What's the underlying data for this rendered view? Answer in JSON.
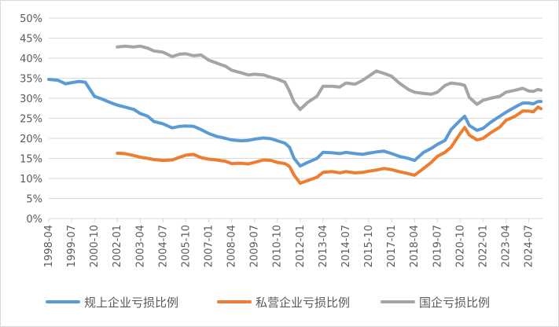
{
  "chart_data": {
    "type": "line",
    "title": "",
    "xlabel": "",
    "ylabel": "",
    "ylim": [
      0,
      0.5
    ],
    "y_ticks": [
      0,
      0.05,
      0.1,
      0.15,
      0.2,
      0.25,
      0.3,
      0.35,
      0.4,
      0.45,
      0.5
    ],
    "y_tick_labels": [
      "0%",
      "5%",
      "10%",
      "15%",
      "20%",
      "25%",
      "30%",
      "35%",
      "40%",
      "45%",
      "50%"
    ],
    "x_tick_labels": [
      "1998-04",
      "1999-07",
      "2000-10",
      "2002-01",
      "2003-04",
      "2004-07",
      "2005-10",
      "2007-01",
      "2008-04",
      "2009-07",
      "2010-10",
      "2012-01",
      "2013-04",
      "2014-07",
      "2015-10",
      "2017-01",
      "2018-04",
      "2019-07",
      "2020-10",
      "2022-01",
      "2023-04",
      "2024-07"
    ],
    "grid": "horizontal",
    "legend_position": "bottom",
    "series": [
      {
        "name": "规上企业亏损比例",
        "color": "#5b9bd5",
        "points": [
          [
            "1998-04",
            0.347
          ],
          [
            "1998-10",
            0.345
          ],
          [
            "1999-03",
            0.336
          ],
          [
            "1999-07",
            0.339
          ],
          [
            "1999-12",
            0.342
          ],
          [
            "2000-04",
            0.34
          ],
          [
            "2000-10",
            0.305
          ],
          [
            "2001-03",
            0.298
          ],
          [
            "2001-08",
            0.29
          ],
          [
            "2002-01",
            0.283
          ],
          [
            "2002-06",
            0.278
          ],
          [
            "2002-12",
            0.272
          ],
          [
            "2003-04",
            0.262
          ],
          [
            "2003-09",
            0.255
          ],
          [
            "2004-01",
            0.242
          ],
          [
            "2004-07",
            0.236
          ],
          [
            "2005-01",
            0.226
          ],
          [
            "2005-06",
            0.23
          ],
          [
            "2005-10",
            0.231
          ],
          [
            "2006-03",
            0.23
          ],
          [
            "2006-08",
            0.222
          ],
          [
            "2007-01",
            0.212
          ],
          [
            "2007-06",
            0.205
          ],
          [
            "2007-12",
            0.2
          ],
          [
            "2008-04",
            0.196
          ],
          [
            "2008-10",
            0.194
          ],
          [
            "2009-03",
            0.195
          ],
          [
            "2009-07",
            0.198
          ],
          [
            "2010-01",
            0.201
          ],
          [
            "2010-06",
            0.199
          ],
          [
            "2010-10",
            0.194
          ],
          [
            "2011-03",
            0.188
          ],
          [
            "2011-06",
            0.178
          ],
          [
            "2011-09",
            0.15
          ],
          [
            "2012-01",
            0.131
          ],
          [
            "2012-06",
            0.14
          ],
          [
            "2012-12",
            0.15
          ],
          [
            "2013-04",
            0.165
          ],
          [
            "2013-10",
            0.164
          ],
          [
            "2014-03",
            0.162
          ],
          [
            "2014-07",
            0.165
          ],
          [
            "2015-01",
            0.162
          ],
          [
            "2015-06",
            0.16
          ],
          [
            "2015-10",
            0.163
          ],
          [
            "2016-03",
            0.166
          ],
          [
            "2016-08",
            0.168
          ],
          [
            "2017-01",
            0.162
          ],
          [
            "2017-06",
            0.155
          ],
          [
            "2017-12",
            0.15
          ],
          [
            "2018-04",
            0.145
          ],
          [
            "2018-10",
            0.165
          ],
          [
            "2019-03",
            0.175
          ],
          [
            "2019-07",
            0.185
          ],
          [
            "2019-12",
            0.195
          ],
          [
            "2020-04",
            0.222
          ],
          [
            "2020-10",
            0.245
          ],
          [
            "2021-01",
            0.255
          ],
          [
            "2021-04",
            0.232
          ],
          [
            "2021-09",
            0.22
          ],
          [
            "2022-01",
            0.225
          ],
          [
            "2022-06",
            0.24
          ],
          [
            "2022-12",
            0.255
          ],
          [
            "2023-04",
            0.265
          ],
          [
            "2023-10",
            0.278
          ],
          [
            "2024-03",
            0.288
          ],
          [
            "2024-07",
            0.288
          ],
          [
            "2024-10",
            0.286
          ],
          [
            "2025-01",
            0.292
          ],
          [
            "2025-03",
            0.292
          ]
        ]
      },
      {
        "name": "私营企业亏损比例",
        "color": "#ed7d31",
        "points": [
          [
            "2002-01",
            0.163
          ],
          [
            "2002-06",
            0.162
          ],
          [
            "2002-12",
            0.157
          ],
          [
            "2003-04",
            0.153
          ],
          [
            "2003-09",
            0.15
          ],
          [
            "2004-01",
            0.147
          ],
          [
            "2004-07",
            0.145
          ],
          [
            "2005-01",
            0.146
          ],
          [
            "2005-06",
            0.153
          ],
          [
            "2005-10",
            0.158
          ],
          [
            "2006-03",
            0.16
          ],
          [
            "2006-08",
            0.152
          ],
          [
            "2007-01",
            0.148
          ],
          [
            "2007-06",
            0.146
          ],
          [
            "2007-12",
            0.143
          ],
          [
            "2008-04",
            0.137
          ],
          [
            "2008-10",
            0.138
          ],
          [
            "2009-03",
            0.136
          ],
          [
            "2009-07",
            0.14
          ],
          [
            "2010-01",
            0.146
          ],
          [
            "2010-06",
            0.145
          ],
          [
            "2010-10",
            0.14
          ],
          [
            "2011-03",
            0.137
          ],
          [
            "2011-06",
            0.13
          ],
          [
            "2011-09",
            0.108
          ],
          [
            "2012-01",
            0.088
          ],
          [
            "2012-06",
            0.095
          ],
          [
            "2012-12",
            0.103
          ],
          [
            "2013-04",
            0.115
          ],
          [
            "2013-10",
            0.117
          ],
          [
            "2014-03",
            0.114
          ],
          [
            "2014-07",
            0.117
          ],
          [
            "2015-01",
            0.114
          ],
          [
            "2015-06",
            0.115
          ],
          [
            "2015-10",
            0.118
          ],
          [
            "2016-03",
            0.121
          ],
          [
            "2016-08",
            0.125
          ],
          [
            "2017-01",
            0.122
          ],
          [
            "2017-06",
            0.117
          ],
          [
            "2017-12",
            0.112
          ],
          [
            "2018-04",
            0.108
          ],
          [
            "2018-10",
            0.125
          ],
          [
            "2019-03",
            0.14
          ],
          [
            "2019-07",
            0.155
          ],
          [
            "2019-12",
            0.165
          ],
          [
            "2020-04",
            0.178
          ],
          [
            "2020-10",
            0.212
          ],
          [
            "2021-01",
            0.227
          ],
          [
            "2021-04",
            0.208
          ],
          [
            "2021-09",
            0.196
          ],
          [
            "2022-01",
            0.2
          ],
          [
            "2022-06",
            0.214
          ],
          [
            "2022-12",
            0.228
          ],
          [
            "2023-04",
            0.245
          ],
          [
            "2023-10",
            0.255
          ],
          [
            "2024-03",
            0.268
          ],
          [
            "2024-07",
            0.268
          ],
          [
            "2024-10",
            0.266
          ],
          [
            "2025-01",
            0.278
          ],
          [
            "2025-03",
            0.274
          ]
        ]
      },
      {
        "name": "国企亏损比例",
        "color": "#a5a5a5",
        "points": [
          [
            "2002-01",
            0.428
          ],
          [
            "2002-06",
            0.43
          ],
          [
            "2002-12",
            0.428
          ],
          [
            "2003-04",
            0.43
          ],
          [
            "2003-09",
            0.425
          ],
          [
            "2004-01",
            0.418
          ],
          [
            "2004-07",
            0.415
          ],
          [
            "2005-01",
            0.404
          ],
          [
            "2005-06",
            0.41
          ],
          [
            "2005-10",
            0.411
          ],
          [
            "2006-03",
            0.406
          ],
          [
            "2006-08",
            0.408
          ],
          [
            "2007-01",
            0.395
          ],
          [
            "2007-06",
            0.388
          ],
          [
            "2007-12",
            0.38
          ],
          [
            "2008-04",
            0.37
          ],
          [
            "2008-10",
            0.364
          ],
          [
            "2009-03",
            0.358
          ],
          [
            "2009-07",
            0.36
          ],
          [
            "2010-01",
            0.358
          ],
          [
            "2010-06",
            0.352
          ],
          [
            "2010-10",
            0.348
          ],
          [
            "2011-03",
            0.34
          ],
          [
            "2011-06",
            0.318
          ],
          [
            "2011-09",
            0.29
          ],
          [
            "2012-01",
            0.272
          ],
          [
            "2012-06",
            0.29
          ],
          [
            "2012-12",
            0.305
          ],
          [
            "2013-04",
            0.33
          ],
          [
            "2013-10",
            0.33
          ],
          [
            "2014-03",
            0.328
          ],
          [
            "2014-07",
            0.338
          ],
          [
            "2015-01",
            0.335
          ],
          [
            "2015-06",
            0.345
          ],
          [
            "2015-10",
            0.355
          ],
          [
            "2016-03",
            0.368
          ],
          [
            "2016-08",
            0.362
          ],
          [
            "2017-01",
            0.355
          ],
          [
            "2017-06",
            0.338
          ],
          [
            "2017-12",
            0.322
          ],
          [
            "2018-04",
            0.315
          ],
          [
            "2018-10",
            0.312
          ],
          [
            "2019-03",
            0.31
          ],
          [
            "2019-07",
            0.315
          ],
          [
            "2019-12",
            0.332
          ],
          [
            "2020-04",
            0.338
          ],
          [
            "2020-10",
            0.335
          ],
          [
            "2021-01",
            0.332
          ],
          [
            "2021-04",
            0.302
          ],
          [
            "2021-09",
            0.285
          ],
          [
            "2022-01",
            0.295
          ],
          [
            "2022-06",
            0.3
          ],
          [
            "2022-12",
            0.305
          ],
          [
            "2023-04",
            0.315
          ],
          [
            "2023-10",
            0.32
          ],
          [
            "2024-03",
            0.325
          ],
          [
            "2024-07",
            0.318
          ],
          [
            "2024-10",
            0.317
          ],
          [
            "2025-01",
            0.322
          ],
          [
            "2025-03",
            0.32
          ]
        ]
      }
    ]
  }
}
